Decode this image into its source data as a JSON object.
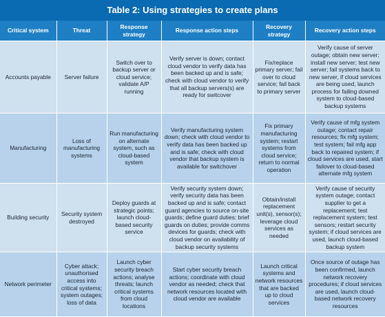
{
  "title": "Table 2: Using strategies to create plans",
  "headers": [
    "Critical system",
    "Threat",
    "Response strategy",
    "Response action steps",
    "Recovery strategy",
    "Recovery action steps"
  ],
  "rows": [
    {
      "critical_system": "Accounts payable",
      "threat": "Server failure",
      "response_strategy": "Switch over to backup server or cloud service; validate A/P running",
      "response_action_steps": "Verify server is down; contact cloud vendor to verify data has been backed up and is safe; check with cloud vendor to verify that all backup servers(s) are ready for switcover",
      "recovery_strategy": "Fix/replace primary server; fail over to cloud service; fail back to primary server",
      "recovery_action_steps": "Verify cause of server outage; obtain new server; install new server; test new server; fail systems back to new server, if cloud services are being used, launch process for failing downed system to cloud-based backup systems"
    },
    {
      "critical_system": "Manufacturing",
      "threat": "Loss of manufacturing systems",
      "response_strategy": "Run manufacturing on alternate system, such as cloud-based system",
      "response_action_steps": "Verify manufacturing system down; check with cloud vendor to verify data has been backed up and is safe; check with cloud vendor that backup system is available for switchover",
      "recovery_strategy": "Fix primary manufacturing system; restart systems from cloud service; return to normal operation",
      "recovery_action_steps": "Verify cause of mfg system outage; contact repair resources; fix mfg system; test system; fail mfg app back to repaired system; if cloud services are used, start failover to cloud-based alternate mfg system"
    },
    {
      "critical_system": "Building security",
      "threat": "Security system destroyed",
      "response_strategy": "Deploy guards at strategic points; launch cloud-based security service",
      "response_action_steps": "Verify security system down; verify security data has been backed up and is safe; contact guard agencies to source on-site guards; define guard duties; brief guards on duties; provide comms devices for guards; check with cloud vendor on availability of backup security systems",
      "recovery_strategy": "Obtain/install replacement unit(s), sensor(s); leverage cloud services as needed",
      "recovery_action_steps": "Verify cause of security system outage; contact supplier to get a replacement; test replacement system; test sensors; restart security system; if cloud services are used, launch cloud-based backup system"
    },
    {
      "critical_system": "Network perimeter",
      "threat": "Cyber attack; unauthorised access into critical systems; system outages; loss of data",
      "response_strategy": "Launch cyber security breach actions; analyse threats; launch critical systems from cloud locations",
      "response_action_steps": "Start cyber security breach actions; coordinate with cloud vendor as needed; check that network resources located with cloud vendor are available",
      "recovery_strategy": "Launch critical systems and network resources that are backed up to cloud services",
      "recovery_action_steps": "Once source of outage has been confirmed, launch network recovery procedures; if cloud services are used, launch cloud-based network recovery resources"
    }
  ],
  "colors": {
    "title_bg": "#0a6ab2",
    "header_bg": "#1e7fc4",
    "row_light": "#cfe0ef",
    "row_dark": "#b7d2ea"
  }
}
